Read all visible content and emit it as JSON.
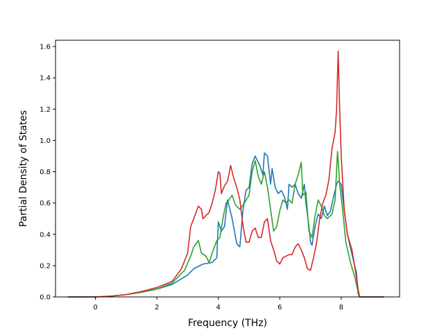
{
  "chart_data": {
    "type": "line",
    "title": "",
    "xlabel": "Frequency (THz)",
    "ylabel": "Partial Density of States",
    "xlim": [
      -1.3,
      9.9
    ],
    "ylim": [
      0.0,
      1.64
    ],
    "xticks": [
      "0",
      "2",
      "4",
      "6",
      "8"
    ],
    "yticks": [
      "0.0",
      "0.2",
      "0.4",
      "0.6",
      "0.8",
      "1.0",
      "1.2",
      "1.4",
      "1.6"
    ],
    "grid": false,
    "legend": "none",
    "series": [
      {
        "color": "#1f77b4",
        "points": [
          [
            -0.9,
            0.0
          ],
          [
            0.0,
            0.0
          ],
          [
            0.5,
            0.005
          ],
          [
            1.0,
            0.015
          ],
          [
            1.5,
            0.03
          ],
          [
            2.0,
            0.05
          ],
          [
            2.5,
            0.08
          ],
          [
            3.0,
            0.14
          ],
          [
            3.2,
            0.18
          ],
          [
            3.5,
            0.21
          ],
          [
            3.8,
            0.22
          ],
          [
            3.95,
            0.25
          ],
          [
            4.0,
            0.48
          ],
          [
            4.1,
            0.42
          ],
          [
            4.2,
            0.45
          ],
          [
            4.3,
            0.62
          ],
          [
            4.45,
            0.5
          ],
          [
            4.6,
            0.34
          ],
          [
            4.7,
            0.32
          ],
          [
            4.8,
            0.55
          ],
          [
            4.9,
            0.68
          ],
          [
            5.0,
            0.7
          ],
          [
            5.1,
            0.85
          ],
          [
            5.2,
            0.9
          ],
          [
            5.35,
            0.84
          ],
          [
            5.45,
            0.78
          ],
          [
            5.5,
            0.92
          ],
          [
            5.6,
            0.9
          ],
          [
            5.7,
            0.72
          ],
          [
            5.75,
            0.82
          ],
          [
            5.85,
            0.7
          ],
          [
            5.95,
            0.66
          ],
          [
            6.05,
            0.68
          ],
          [
            6.15,
            0.64
          ],
          [
            6.25,
            0.56
          ],
          [
            6.3,
            0.72
          ],
          [
            6.4,
            0.7
          ],
          [
            6.5,
            0.72
          ],
          [
            6.6,
            0.66
          ],
          [
            6.7,
            0.63
          ],
          [
            6.8,
            0.72
          ],
          [
            6.85,
            0.6
          ],
          [
            6.95,
            0.45
          ],
          [
            7.0,
            0.35
          ],
          [
            7.05,
            0.33
          ],
          [
            7.15,
            0.45
          ],
          [
            7.25,
            0.53
          ],
          [
            7.35,
            0.5
          ],
          [
            7.45,
            0.58
          ],
          [
            7.55,
            0.52
          ],
          [
            7.65,
            0.55
          ],
          [
            7.75,
            0.64
          ],
          [
            7.85,
            0.72
          ],
          [
            7.9,
            0.74
          ],
          [
            8.0,
            0.72
          ],
          [
            8.1,
            0.55
          ],
          [
            8.2,
            0.4
          ],
          [
            8.35,
            0.27
          ],
          [
            8.5,
            0.15
          ],
          [
            8.55,
            0.02
          ],
          [
            8.6,
            0.0
          ],
          [
            9.4,
            0.0
          ]
        ]
      },
      {
        "color": "#2ca02c",
        "points": [
          [
            -0.9,
            0.0
          ],
          [
            0.0,
            0.0
          ],
          [
            0.5,
            0.005
          ],
          [
            1.0,
            0.015
          ],
          [
            1.5,
            0.03
          ],
          [
            2.0,
            0.05
          ],
          [
            2.5,
            0.09
          ],
          [
            2.9,
            0.17
          ],
          [
            3.1,
            0.26
          ],
          [
            3.2,
            0.32
          ],
          [
            3.35,
            0.36
          ],
          [
            3.45,
            0.28
          ],
          [
            3.6,
            0.26
          ],
          [
            3.7,
            0.22
          ],
          [
            3.8,
            0.28
          ],
          [
            3.95,
            0.36
          ],
          [
            4.05,
            0.38
          ],
          [
            4.15,
            0.5
          ],
          [
            4.25,
            0.6
          ],
          [
            4.35,
            0.62
          ],
          [
            4.45,
            0.65
          ],
          [
            4.55,
            0.59
          ],
          [
            4.7,
            0.56
          ],
          [
            4.85,
            0.6
          ],
          [
            5.0,
            0.65
          ],
          [
            5.1,
            0.8
          ],
          [
            5.2,
            0.87
          ],
          [
            5.3,
            0.77
          ],
          [
            5.4,
            0.72
          ],
          [
            5.5,
            0.8
          ],
          [
            5.6,
            0.7
          ],
          [
            5.7,
            0.56
          ],
          [
            5.8,
            0.42
          ],
          [
            5.9,
            0.45
          ],
          [
            6.0,
            0.55
          ],
          [
            6.1,
            0.62
          ],
          [
            6.2,
            0.6
          ],
          [
            6.3,
            0.62
          ],
          [
            6.4,
            0.6
          ],
          [
            6.5,
            0.72
          ],
          [
            6.6,
            0.78
          ],
          [
            6.7,
            0.86
          ],
          [
            6.75,
            0.65
          ],
          [
            6.85,
            0.67
          ],
          [
            6.95,
            0.42
          ],
          [
            7.05,
            0.38
          ],
          [
            7.15,
            0.52
          ],
          [
            7.25,
            0.62
          ],
          [
            7.35,
            0.58
          ],
          [
            7.45,
            0.52
          ],
          [
            7.55,
            0.5
          ],
          [
            7.7,
            0.53
          ],
          [
            7.8,
            0.62
          ],
          [
            7.88,
            0.93
          ],
          [
            7.95,
            0.72
          ],
          [
            8.05,
            0.55
          ],
          [
            8.15,
            0.35
          ],
          [
            8.3,
            0.22
          ],
          [
            8.45,
            0.12
          ],
          [
            8.55,
            0.03
          ],
          [
            8.6,
            0.0
          ],
          [
            9.4,
            0.0
          ]
        ]
      },
      {
        "color": "#d62728",
        "points": [
          [
            -0.9,
            0.0
          ],
          [
            0.0,
            0.0
          ],
          [
            0.5,
            0.005
          ],
          [
            1.0,
            0.015
          ],
          [
            1.5,
            0.035
          ],
          [
            2.0,
            0.06
          ],
          [
            2.5,
            0.1
          ],
          [
            2.8,
            0.18
          ],
          [
            3.0,
            0.28
          ],
          [
            3.1,
            0.45
          ],
          [
            3.2,
            0.5
          ],
          [
            3.35,
            0.58
          ],
          [
            3.45,
            0.56
          ],
          [
            3.5,
            0.5
          ],
          [
            3.6,
            0.52
          ],
          [
            3.7,
            0.54
          ],
          [
            3.8,
            0.6
          ],
          [
            3.9,
            0.68
          ],
          [
            4.0,
            0.8
          ],
          [
            4.05,
            0.79
          ],
          [
            4.1,
            0.66
          ],
          [
            4.2,
            0.71
          ],
          [
            4.3,
            0.74
          ],
          [
            4.4,
            0.84
          ],
          [
            4.5,
            0.76
          ],
          [
            4.6,
            0.7
          ],
          [
            4.7,
            0.62
          ],
          [
            4.8,
            0.46
          ],
          [
            4.9,
            0.35
          ],
          [
            5.0,
            0.35
          ],
          [
            5.1,
            0.42
          ],
          [
            5.2,
            0.44
          ],
          [
            5.3,
            0.38
          ],
          [
            5.4,
            0.38
          ],
          [
            5.5,
            0.48
          ],
          [
            5.6,
            0.5
          ],
          [
            5.7,
            0.36
          ],
          [
            5.8,
            0.3
          ],
          [
            5.9,
            0.23
          ],
          [
            6.0,
            0.21
          ],
          [
            6.1,
            0.25
          ],
          [
            6.2,
            0.26
          ],
          [
            6.3,
            0.27
          ],
          [
            6.4,
            0.27
          ],
          [
            6.5,
            0.32
          ],
          [
            6.6,
            0.34
          ],
          [
            6.7,
            0.3
          ],
          [
            6.8,
            0.25
          ],
          [
            6.9,
            0.18
          ],
          [
            7.0,
            0.17
          ],
          [
            7.1,
            0.25
          ],
          [
            7.2,
            0.35
          ],
          [
            7.3,
            0.5
          ],
          [
            7.4,
            0.6
          ],
          [
            7.5,
            0.65
          ],
          [
            7.6,
            0.75
          ],
          [
            7.7,
            0.95
          ],
          [
            7.8,
            1.05
          ],
          [
            7.85,
            1.2
          ],
          [
            7.9,
            1.57
          ],
          [
            7.95,
            1.2
          ],
          [
            8.0,
            0.9
          ],
          [
            8.1,
            0.55
          ],
          [
            8.2,
            0.4
          ],
          [
            8.35,
            0.3
          ],
          [
            8.45,
            0.18
          ],
          [
            8.55,
            0.05
          ],
          [
            8.6,
            0.0
          ],
          [
            9.4,
            0.0
          ]
        ]
      }
    ]
  }
}
